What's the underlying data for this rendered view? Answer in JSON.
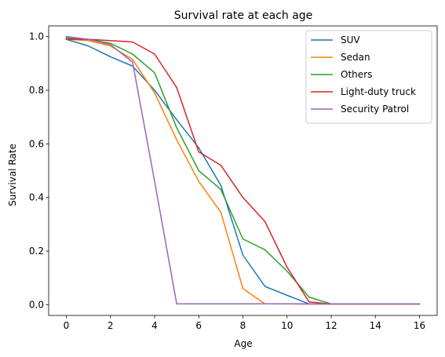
{
  "chart_data": {
    "type": "line",
    "title": "Survival rate at each age",
    "xlabel": "Age",
    "ylabel": "Survival Rate",
    "xlim": [
      -0.8,
      16.8
    ],
    "ylim": [
      -0.04,
      1.04
    ],
    "xticks": [
      0,
      2,
      4,
      6,
      8,
      10,
      12,
      14,
      16
    ],
    "yticks": [
      0.0,
      0.2,
      0.4,
      0.6,
      0.8,
      1.0
    ],
    "x": [
      0,
      1,
      2,
      3,
      4,
      5,
      6,
      7,
      8,
      9,
      10,
      11,
      12,
      13,
      14,
      15,
      16
    ],
    "grid": false,
    "legend_position": "top-right",
    "series": [
      {
        "name": "SUV",
        "color": "#1f77b4",
        "values": [
          0.99,
          0.965,
          0.925,
          0.89,
          0.8,
          0.69,
          0.585,
          0.445,
          0.185,
          0.068,
          0.035,
          0.003,
          0.002,
          0.002,
          0.002,
          0.002,
          0.002
        ]
      },
      {
        "name": "Sedan",
        "color": "#ff7f0e",
        "values": [
          0.99,
          0.985,
          0.965,
          0.915,
          0.79,
          0.615,
          0.46,
          0.345,
          0.06,
          0.003,
          0.003,
          0.002,
          0.002,
          0.002,
          0.002,
          0.002,
          0.002
        ]
      },
      {
        "name": "Others",
        "color": "#2ca02c",
        "values": [
          0.995,
          0.99,
          0.975,
          0.935,
          0.865,
          0.66,
          0.5,
          0.43,
          0.245,
          0.205,
          0.125,
          0.028,
          0.003,
          0.003,
          0.003,
          0.003,
          0.003
        ]
      },
      {
        "name": "Light-duty truck",
        "color": "#d62728",
        "values": [
          0.99,
          0.99,
          0.985,
          0.98,
          0.935,
          0.81,
          0.57,
          0.52,
          0.4,
          0.31,
          0.14,
          0.01,
          0.003,
          0.003,
          0.003,
          0.003,
          0.003
        ]
      },
      {
        "name": "Security Patrol",
        "color": "#9467bd",
        "values": [
          1.0,
          0.99,
          0.97,
          0.905,
          0.46,
          0.003,
          0.003,
          0.003,
          0.003,
          0.003,
          0.003,
          0.003,
          0.003,
          0.003,
          0.003,
          0.003,
          0.003
        ]
      }
    ]
  }
}
